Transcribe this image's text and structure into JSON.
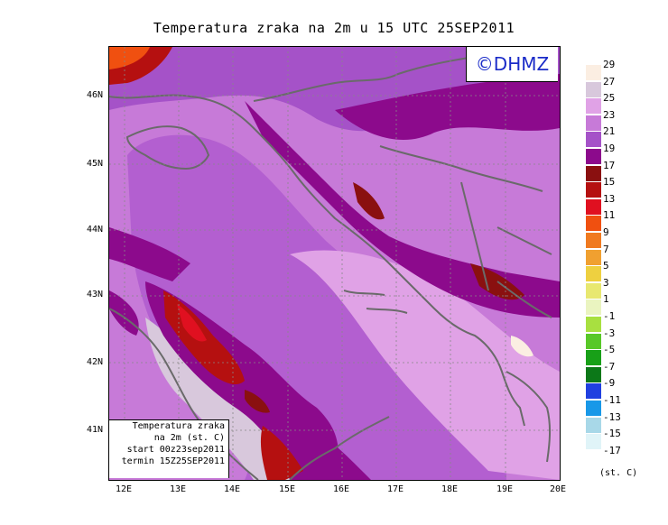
{
  "title": "Temperatura zraka na 2m u 15 UTC 25SEP2011",
  "logo": "©DHMZ",
  "infobox": {
    "line1": "Temperatura zraka",
    "line2": "na 2m (st. C)",
    "line3": "start 00z23sep2011",
    "line4": "termin 15Z25SEP2011"
  },
  "lat_labels": [
    "46N",
    "45N",
    "44N",
    "43N",
    "42N",
    "41N"
  ],
  "lon_labels": [
    "12E",
    "13E",
    "14E",
    "15E",
    "16E",
    "17E",
    "18E",
    "19E",
    "20E"
  ],
  "legend": {
    "units": "(st. C)",
    "labels": [
      "29",
      "27",
      "25",
      "23",
      "21",
      "19",
      "17",
      "15",
      "13",
      "11",
      "9",
      "7",
      "5",
      "3",
      "1",
      "-1",
      "-3",
      "-5",
      "-7",
      "-9",
      "-11",
      "-13",
      "-15",
      "-17"
    ],
    "colors": [
      "#fbeee2",
      "#d8c8dc",
      "#e0a2e6",
      "#c77ad8",
      "#a552c8",
      "#8c0a8c",
      "#8a1010",
      "#b51010",
      "#e01020",
      "#f05010",
      "#f07a20",
      "#f0a030",
      "#eed040",
      "#e8e870",
      "#eaf4c0",
      "#a8e040",
      "#58c828",
      "#18a018",
      "#0c7818",
      "#2040e0",
      "#1898e8",
      "#a8d8e8",
      "#e0f4f8"
    ]
  }
}
